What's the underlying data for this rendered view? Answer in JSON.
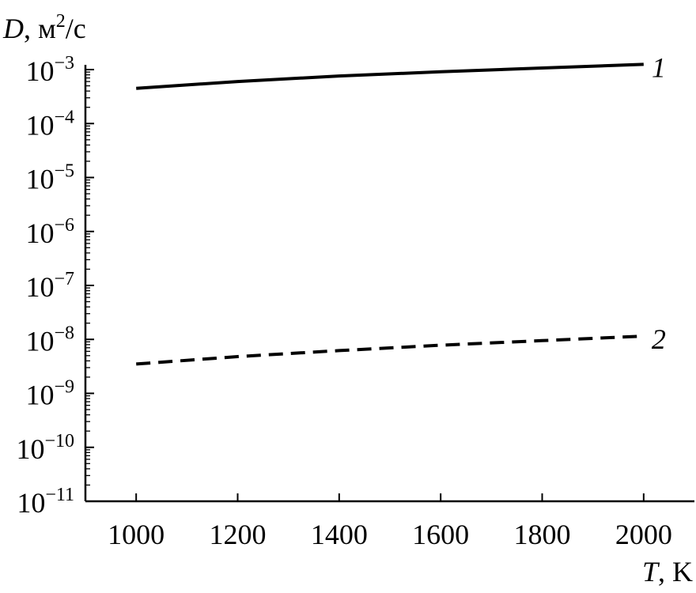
{
  "chart_data": {
    "type": "line",
    "title": "",
    "xlabel_var": "T",
    "xlabel_unit": ", K",
    "ylabel_var": "D",
    "ylabel_unit": ", м",
    "ylabel_unit_sup": "2",
    "ylabel_unit_tail": "/с",
    "x_scale": "linear",
    "y_scale": "log",
    "xlim": [
      900,
      2100
    ],
    "ylim": [
      1e-11,
      0.001
    ],
    "x_ticks": [
      1000,
      1200,
      1400,
      1600,
      1800,
      2000
    ],
    "x_tick_labels": [
      "1000",
      "1200",
      "1400",
      "1600",
      "1800",
      "2000"
    ],
    "y_ticks": [
      {
        "value": 0.001,
        "base": "10",
        "exp": "−3"
      },
      {
        "value": 0.0001,
        "base": "10",
        "exp": "−4"
      },
      {
        "value": 1e-05,
        "base": "10",
        "exp": "−5"
      },
      {
        "value": 1e-06,
        "base": "10",
        "exp": "−6"
      },
      {
        "value": 1e-07,
        "base": "10",
        "exp": "−7"
      },
      {
        "value": 1e-08,
        "base": "10",
        "exp": "−8"
      },
      {
        "value": 1e-09,
        "base": "10",
        "exp": "−9"
      },
      {
        "value": 1e-10,
        "base": "10",
        "exp": "−10"
      },
      {
        "value": 1e-11,
        "base": "10",
        "exp": "−11"
      }
    ],
    "grid": false,
    "series": [
      {
        "label": "1",
        "style": "solid",
        "color": "#000000",
        "x": [
          1000,
          1200,
          1400,
          1600,
          1800,
          2000
        ],
        "y": [
          0.00045,
          0.0006,
          0.00076,
          0.00091,
          0.00107,
          0.00125
        ]
      },
      {
        "label": "2",
        "style": "dashed",
        "color": "#000000",
        "x": [
          1000,
          1200,
          1400,
          1600,
          1800,
          2000
        ],
        "y": [
          3.5e-09,
          4.8e-09,
          6.2e-09,
          7.8e-09,
          9.5e-09,
          1.15e-08
        ]
      }
    ]
  }
}
